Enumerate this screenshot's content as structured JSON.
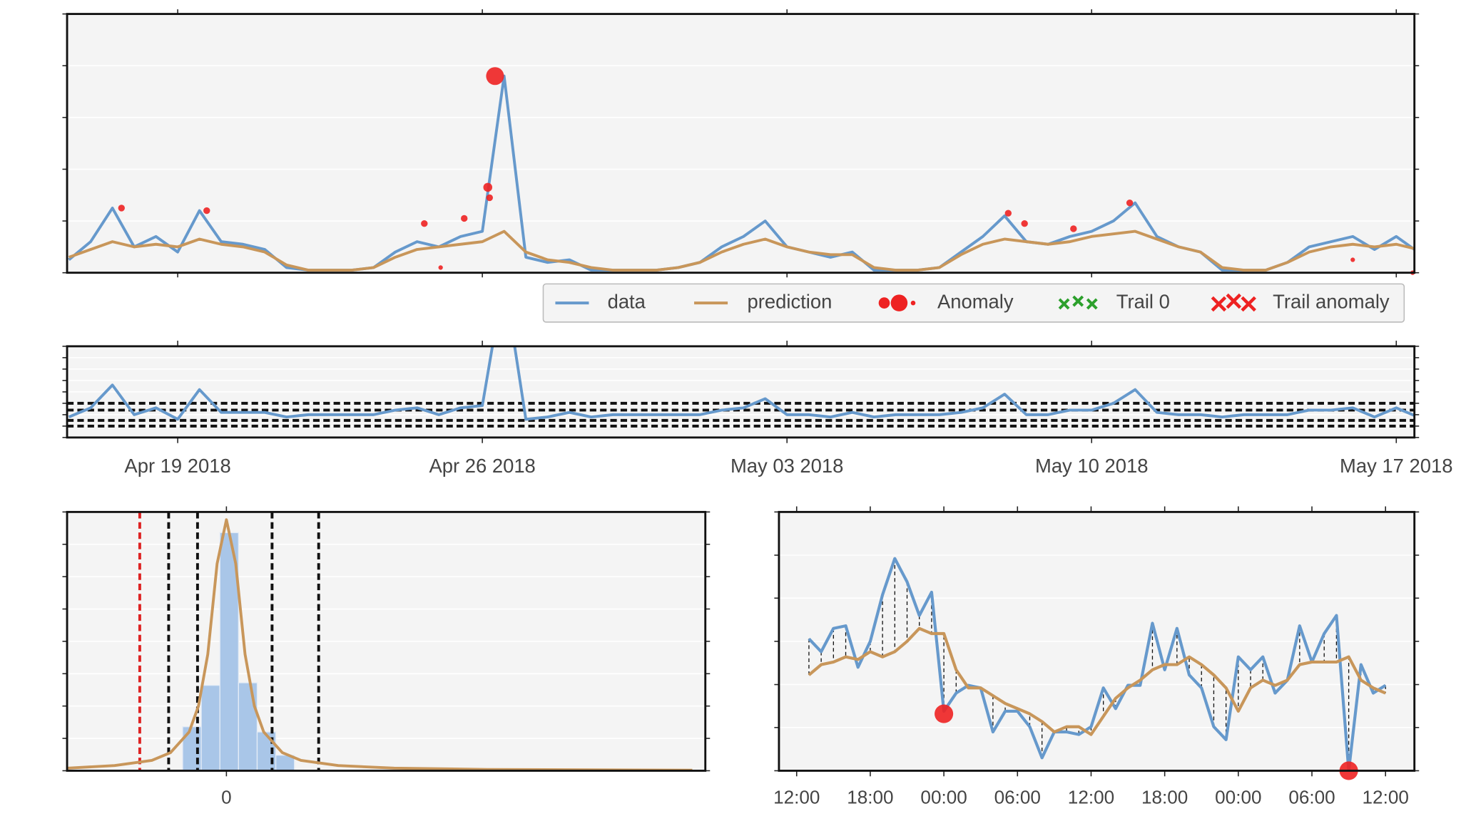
{
  "chart_data": [
    {
      "type": "line",
      "x": [
        "2018-04-16T12:00",
        "2018-04-17T00:00",
        "2018-04-17T12:00",
        "2018-04-18T00:00",
        "2018-04-18T12:00",
        "2018-04-19T00:00",
        "2018-04-19T12:00",
        "2018-04-20T00:00",
        "2018-04-20T12:00",
        "2018-04-21T00:00",
        "2018-04-21T12:00",
        "2018-04-22T00:00",
        "2018-04-22T12:00",
        "2018-04-23T00:00",
        "2018-04-23T12:00",
        "2018-04-24T00:00",
        "2018-04-24T12:00",
        "2018-04-25T00:00",
        "2018-04-25T12:00",
        "2018-04-26T00:00",
        "2018-04-26T12:00",
        "2018-04-27T00:00",
        "2018-04-27T12:00",
        "2018-04-28T00:00",
        "2018-04-28T12:00",
        "2018-04-29T00:00",
        "2018-04-29T12:00",
        "2018-04-30T00:00",
        "2018-04-30T12:00",
        "2018-05-01T00:00",
        "2018-05-01T12:00",
        "2018-05-02T00:00",
        "2018-05-02T12:00",
        "2018-05-03T00:00",
        "2018-05-03T12:00",
        "2018-05-04T00:00",
        "2018-05-04T12:00",
        "2018-05-05T00:00",
        "2018-05-05T12:00",
        "2018-05-06T00:00",
        "2018-05-06T12:00",
        "2018-05-07T00:00",
        "2018-05-07T12:00",
        "2018-05-08T00:00",
        "2018-05-08T12:00",
        "2018-05-09T00:00",
        "2018-05-09T12:00",
        "2018-05-10T00:00",
        "2018-05-10T12:00",
        "2018-05-11T00:00",
        "2018-05-11T12:00",
        "2018-05-12T00:00",
        "2018-05-12T12:00",
        "2018-05-13T00:00",
        "2018-05-13T12:00",
        "2018-05-14T00:00",
        "2018-05-14T12:00",
        "2018-05-15T00:00",
        "2018-05-15T12:00",
        "2018-05-16T00:00",
        "2018-05-16T12:00",
        "2018-05-17T00:00",
        "2018-05-17T12:00"
      ],
      "series": [
        {
          "name": "data",
          "color": "#6699cc",
          "values": [
            5,
            12,
            25,
            10,
            14,
            8,
            24,
            12,
            11,
            9,
            2,
            1,
            1,
            1,
            2,
            8,
            12,
            10,
            14,
            16,
            76,
            6,
            4,
            5,
            1,
            1,
            1,
            1,
            2,
            4,
            10,
            14,
            20,
            10,
            8,
            6,
            8,
            1,
            1,
            1,
            2,
            8,
            14,
            22,
            12,
            11,
            14,
            16,
            20,
            27,
            14,
            10,
            8,
            1,
            1,
            1,
            4,
            10,
            12,
            14,
            9,
            14,
            8
          ]
        },
        {
          "name": "prediction",
          "color": "#c8965a",
          "values": [
            6,
            9,
            12,
            10,
            11,
            10,
            13,
            11,
            10,
            8,
            3,
            1,
            1,
            1,
            2,
            6,
            9,
            10,
            11,
            12,
            16,
            8,
            5,
            4,
            2,
            1,
            1,
            1,
            2,
            4,
            8,
            11,
            13,
            10,
            8,
            7,
            7,
            2,
            1,
            1,
            2,
            7,
            11,
            13,
            12,
            11,
            12,
            14,
            15,
            16,
            13,
            10,
            8,
            2,
            1,
            1,
            4,
            8,
            10,
            11,
            10,
            11,
            9
          ]
        },
        {
          "name": "Anomaly",
          "color": "#ee2222",
          "type": "scatter",
          "x": [
            "2018-04-17T17:00",
            "2018-04-19T16:00",
            "2018-04-24T16:00",
            "2018-04-25T01:00",
            "2018-04-25T14:00",
            "2018-04-26T03:00",
            "2018-04-26T04:00",
            "2018-04-26T07:00",
            "2018-05-08T02:00",
            "2018-05-08T11:00",
            "2018-05-09T14:00",
            "2018-05-10T21:00",
            "2018-05-16T00:00",
            "2018-05-17T09:00"
          ],
          "values": [
            25,
            24,
            19,
            2,
            21,
            33,
            29,
            76,
            23,
            19,
            17,
            27,
            5,
            0
          ],
          "sizes": [
            3,
            3,
            3,
            2,
            3,
            4,
            3,
            8,
            3,
            3,
            3,
            3,
            2,
            2
          ]
        },
        {
          "name": "Trail 0",
          "color": "#2ca02c",
          "type": "scatter",
          "marker": "x",
          "x": [],
          "values": []
        },
        {
          "name": "Trail anomaly",
          "color": "#ee2222",
          "type": "scatter",
          "marker": "X",
          "x": [],
          "values": []
        }
      ],
      "xlim": [
        "2018-04-16T11:00",
        "2018-05-17T10:00"
      ],
      "ylim": [
        0,
        100
      ],
      "yticks": [
        0,
        20,
        40,
        60,
        80,
        100
      ],
      "grid": true,
      "legend": "bottom-right"
    },
    {
      "type": "line",
      "x": [
        "2018-04-16T12:00",
        "2018-04-17T00:00",
        "2018-04-17T12:00",
        "2018-04-18T00:00",
        "2018-04-18T12:00",
        "2018-04-19T00:00",
        "2018-04-19T12:00",
        "2018-04-20T00:00",
        "2018-04-20T12:00",
        "2018-04-21T00:00",
        "2018-04-21T12:00",
        "2018-04-22T00:00",
        "2018-04-22T12:00",
        "2018-04-23T00:00",
        "2018-04-23T12:00",
        "2018-04-24T00:00",
        "2018-04-24T12:00",
        "2018-04-25T00:00",
        "2018-04-25T12:00",
        "2018-04-26T00:00",
        "2018-04-26T12:00",
        "2018-04-27T00:00",
        "2018-04-27T12:00",
        "2018-04-28T00:00",
        "2018-04-28T12:00",
        "2018-04-29T00:00",
        "2018-04-29T12:00",
        "2018-04-30T00:00",
        "2018-04-30T12:00",
        "2018-05-01T00:00",
        "2018-05-01T12:00",
        "2018-05-02T00:00",
        "2018-05-02T12:00",
        "2018-05-03T00:00",
        "2018-05-03T12:00",
        "2018-05-04T00:00",
        "2018-05-04T12:00",
        "2018-05-05T00:00",
        "2018-05-05T12:00",
        "2018-05-06T00:00",
        "2018-05-06T12:00",
        "2018-05-07T00:00",
        "2018-05-07T12:00",
        "2018-05-08T00:00",
        "2018-05-08T12:00",
        "2018-05-09T00:00",
        "2018-05-09T12:00",
        "2018-05-10T00:00",
        "2018-05-10T12:00",
        "2018-05-11T00:00",
        "2018-05-11T12:00",
        "2018-05-12T00:00",
        "2018-05-12T12:00",
        "2018-05-13T00:00",
        "2018-05-13T12:00",
        "2018-05-14T00:00",
        "2018-05-14T12:00",
        "2018-05-15T00:00",
        "2018-05-15T12:00",
        "2018-05-16T00:00",
        "2018-05-16T12:00",
        "2018-05-17T00:00",
        "2018-05-17T12:00"
      ],
      "values": [
        -1,
        3,
        13,
        0,
        3,
        -2,
        11,
        1,
        1,
        1,
        -1,
        0,
        0,
        0,
        0,
        2,
        3,
        0,
        3,
        4,
        60,
        -2,
        -1,
        1,
        -1,
        0,
        0,
        0,
        0,
        0,
        2,
        3,
        7,
        0,
        0,
        -1,
        1,
        -1,
        0,
        0,
        0,
        1,
        3,
        9,
        0,
        0,
        2,
        2,
        5,
        11,
        1,
        0,
        0,
        -1,
        0,
        0,
        0,
        2,
        2,
        3,
        -1,
        3,
        -1
      ],
      "color": "#6699cc",
      "thresholds": [
        5,
        2,
        -2.5,
        -5
      ],
      "xlim": [
        "2018-04-16T11:00",
        "2018-05-17T10:00"
      ],
      "xticks": [
        {
          "value": "2018-04-19T00:00",
          "label": "Apr 19 2018"
        },
        {
          "value": "2018-04-26T00:00",
          "label": "Apr 26 2018"
        },
        {
          "value": "2018-05-03T00:00",
          "label": "May 03 2018"
        },
        {
          "value": "2018-05-10T00:00",
          "label": "May 10 2018"
        },
        {
          "value": "2018-05-17T00:00",
          "label": "May 17 2018"
        }
      ],
      "ylim": [
        -10,
        30
      ],
      "yticks": [
        -10,
        -5,
        0,
        5,
        10,
        15,
        20,
        25,
        30
      ],
      "grid": true
    },
    {
      "type": "histogram",
      "bins": [
        -2.35,
        -1.35,
        -0.35,
        0.65,
        1.65,
        2.65,
        3.65
      ],
      "values": [
        0.17,
        0.33,
        0.92,
        0.34,
        0.15,
        0.06
      ],
      "color": "#a9c6e8",
      "curve": {
        "color": "#c8965a",
        "x": [
          -8.5,
          -6,
          -4,
          -3,
          -2,
          -1.5,
          -1,
          -0.5,
          0,
          0.5,
          1,
          1.5,
          2,
          3,
          4,
          6,
          9,
          14,
          25
        ],
        "values": [
          0.01,
          0.02,
          0.04,
          0.07,
          0.15,
          0.25,
          0.45,
          0.8,
          0.97,
          0.8,
          0.45,
          0.25,
          0.15,
          0.07,
          0.04,
          0.02,
          0.01,
          0.005,
          0.002
        ]
      },
      "thresholds": [
        {
          "value": -4.65,
          "color": "#dd2222"
        },
        {
          "value": -3.1,
          "color": "#111111"
        },
        {
          "value": -1.55,
          "color": "#111111"
        },
        {
          "value": 2.45,
          "color": "#111111"
        },
        {
          "value": 4.95,
          "color": "#111111"
        }
      ],
      "xlim": [
        -8.55,
        25.7
      ],
      "xticks": [
        0
      ],
      "ylim": [
        0,
        1
      ],
      "yticks": [
        0,
        0.125,
        0.25,
        0.375,
        0.5,
        0.625,
        0.75,
        0.875,
        1
      ],
      "grid": true
    },
    {
      "type": "line",
      "categories": [
        "12:00",
        null,
        null,
        null,
        null,
        null,
        "18:00",
        null,
        null,
        null,
        null,
        null,
        "00:00",
        null,
        null,
        null,
        null,
        null,
        "06:00",
        null,
        null,
        null,
        null,
        null,
        "12:00",
        null,
        null,
        null,
        null,
        null,
        "18:00",
        null,
        null,
        null,
        null,
        null,
        "00:00",
        null,
        null,
        null,
        null,
        null,
        "06:00",
        null,
        null,
        null,
        null,
        null,
        "12:00"
      ],
      "series": [
        {
          "name": "data",
          "color": "#6699cc",
          "values": [
            null,
            51,
            46,
            55,
            56,
            40,
            50,
            68,
            82,
            73,
            60,
            69,
            23,
            30,
            33,
            32,
            15,
            23,
            23,
            17,
            5,
            15,
            15,
            14,
            17,
            32,
            24,
            33,
            33,
            57,
            39,
            55,
            37,
            32,
            17,
            12,
            44,
            39,
            44,
            30,
            35,
            56,
            42,
            53,
            60,
            0,
            41,
            30,
            33
          ]
        },
        {
          "name": "prediction",
          "color": "#c8965a",
          "values": [
            null,
            37,
            41,
            42,
            44,
            43,
            46,
            44,
            46,
            50,
            55,
            53,
            53,
            39,
            32,
            32,
            29,
            26,
            24,
            22,
            19,
            15,
            17,
            17,
            14,
            21,
            28,
            32,
            35,
            39,
            41,
            41,
            44,
            41,
            37,
            32,
            23,
            32,
            35,
            33,
            35,
            41,
            42,
            42,
            42,
            44,
            35,
            32,
            30
          ]
        },
        {
          "name": "Anomaly",
          "color": "#ee2222",
          "type": "scatter",
          "values": [
            null,
            null,
            null,
            null,
            null,
            null,
            null,
            null,
            null,
            null,
            null,
            null,
            22,
            null,
            null,
            null,
            null,
            null,
            null,
            null,
            null,
            null,
            null,
            null,
            null,
            null,
            null,
            null,
            null,
            null,
            null,
            null,
            null,
            null,
            null,
            null,
            null,
            null,
            null,
            null,
            null,
            null,
            null,
            null,
            null,
            0,
            null,
            null,
            null
          ]
        }
      ],
      "ylim": [
        0,
        100
      ],
      "yticks": [
        0,
        16.7,
        33.3,
        50,
        66.7,
        83.3,
        100
      ],
      "grid": true
    }
  ]
}
